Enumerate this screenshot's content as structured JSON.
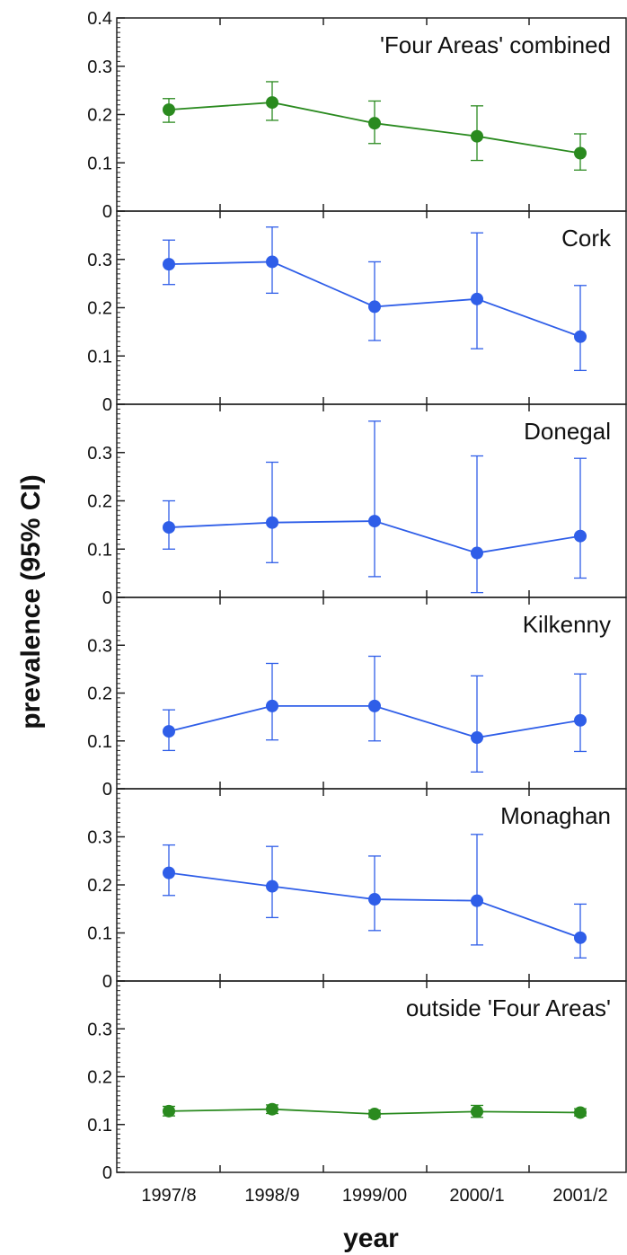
{
  "chart_data": {
    "type": "line",
    "ylabel": "prevalence (95% CI)",
    "xlabel": "year",
    "categories": [
      "1997/8",
      "1998/9",
      "1999/00",
      "2000/1",
      "2001/2"
    ],
    "panels": [
      {
        "title": "'Four Areas' combined",
        "color": "#2a8a1f",
        "ylim": [
          0,
          0.4
        ],
        "yticks": [
          "0",
          "0.1",
          "0.2",
          "0.3",
          "0.4"
        ],
        "values": [
          0.21,
          0.225,
          0.182,
          0.155,
          0.12
        ],
        "ci_low": [
          0.184,
          0.188,
          0.14,
          0.105,
          0.085
        ],
        "ci_high": [
          0.233,
          0.268,
          0.228,
          0.218,
          0.16
        ]
      },
      {
        "title": "Cork",
        "color": "#2f5ee8",
        "ylim": [
          0,
          0.4
        ],
        "yticks": [
          "0",
          "0.1",
          "0.2",
          "0.3",
          ""
        ],
        "values": [
          0.29,
          0.295,
          0.202,
          0.218,
          0.14
        ],
        "ci_low": [
          0.248,
          0.23,
          0.132,
          0.115,
          0.07
        ],
        "ci_high": [
          0.34,
          0.367,
          0.295,
          0.355,
          0.246
        ]
      },
      {
        "title": "Donegal",
        "color": "#2f5ee8",
        "ylim": [
          0,
          0.4
        ],
        "yticks": [
          "0",
          "0.1",
          "0.2",
          "0.3",
          ""
        ],
        "values": [
          0.145,
          0.155,
          0.158,
          0.092,
          0.127
        ],
        "ci_low": [
          0.1,
          0.072,
          0.043,
          0.01,
          0.04
        ],
        "ci_high": [
          0.2,
          0.28,
          0.365,
          0.293,
          0.288
        ]
      },
      {
        "title": "Kilkenny",
        "color": "#2f5ee8",
        "ylim": [
          0,
          0.4
        ],
        "yticks": [
          "0",
          "0.1",
          "0.2",
          "0.3",
          ""
        ],
        "values": [
          0.12,
          0.173,
          0.173,
          0.107,
          0.143
        ],
        "ci_low": [
          0.08,
          0.102,
          0.1,
          0.035,
          0.078
        ],
        "ci_high": [
          0.165,
          0.262,
          0.277,
          0.236,
          0.24
        ]
      },
      {
        "title": "Monaghan",
        "color": "#2f5ee8",
        "ylim": [
          0,
          0.4
        ],
        "yticks": [
          "0",
          "0.1",
          "0.2",
          "0.3",
          ""
        ],
        "values": [
          0.225,
          0.197,
          0.17,
          0.167,
          0.09
        ],
        "ci_low": [
          0.178,
          0.132,
          0.105,
          0.075,
          0.048
        ],
        "ci_high": [
          0.283,
          0.28,
          0.26,
          0.305,
          0.16
        ]
      },
      {
        "title": "outside 'Four Areas'",
        "color": "#2a8a1f",
        "ylim": [
          0,
          0.4
        ],
        "yticks": [
          "0",
          "0.1",
          "0.2",
          "0.3",
          ""
        ],
        "values": [
          0.128,
          0.132,
          0.122,
          0.127,
          0.125
        ],
        "ci_low": [
          0.118,
          0.123,
          0.115,
          0.115,
          0.118
        ],
        "ci_high": [
          0.138,
          0.141,
          0.13,
          0.14,
          0.133
        ]
      }
    ]
  }
}
